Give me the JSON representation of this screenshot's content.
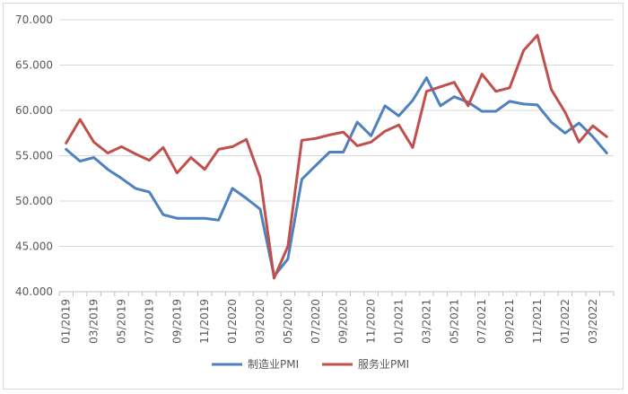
{
  "chart_data": {
    "type": "line",
    "title": "",
    "xlabel": "",
    "ylabel": "",
    "ylim": [
      40,
      70
    ],
    "y_ticks": [
      "40.000",
      "45.000",
      "50.000",
      "55.000",
      "60.000",
      "65.000",
      "70.000"
    ],
    "grid": "horizontal",
    "legend_position": "bottom",
    "categories": [
      "01/2019",
      "02/2019",
      "03/2019",
      "04/2019",
      "05/2019",
      "06/2019",
      "07/2019",
      "08/2019",
      "09/2019",
      "10/2019",
      "11/2019",
      "12/2019",
      "01/2020",
      "02/2020",
      "03/2020",
      "04/2020",
      "05/2020",
      "06/2020",
      "07/2020",
      "08/2020",
      "09/2020",
      "10/2020",
      "11/2020",
      "12/2020",
      "01/2021",
      "02/2021",
      "03/2021",
      "04/2021",
      "05/2021",
      "06/2021",
      "07/2021",
      "08/2021",
      "09/2021",
      "10/2021",
      "11/2021",
      "12/2021",
      "01/2022",
      "02/2022",
      "03/2022",
      "04/2022"
    ],
    "x_tick_labels": [
      "01/2019",
      "03/2019",
      "05/2019",
      "07/2019",
      "09/2019",
      "11/2019",
      "01/2020",
      "03/2020",
      "05/2020",
      "07/2020",
      "09/2020",
      "11/2020",
      "01/2021",
      "03/2021",
      "05/2021",
      "07/2021",
      "09/2021",
      "11/2021",
      "01/2022",
      "03/2022"
    ],
    "series": [
      {
        "name": "制造业PMI",
        "color": "#4e81bd",
        "values": [
          55.7,
          54.4,
          54.8,
          53.5,
          52.5,
          51.4,
          51.0,
          48.5,
          48.1,
          48.1,
          48.1,
          47.9,
          51.4,
          50.3,
          49.1,
          41.7,
          43.6,
          52.4,
          53.9,
          55.4,
          55.4,
          58.7,
          57.2,
          60.5,
          59.4,
          61.1,
          63.6,
          60.5,
          61.5,
          60.9,
          59.9,
          59.9,
          61.0,
          60.7,
          60.6,
          58.7,
          57.5,
          58.6,
          57.1,
          55.3
        ]
      },
      {
        "name": "服务业PMI",
        "color": "#c0504d",
        "values": [
          56.4,
          59.0,
          56.5,
          55.3,
          56.0,
          55.2,
          54.5,
          55.9,
          53.1,
          54.8,
          53.5,
          55.7,
          56.0,
          56.8,
          52.6,
          41.5,
          45.0,
          56.7,
          56.9,
          57.3,
          57.6,
          56.1,
          56.5,
          57.7,
          58.4,
          55.9,
          62.1,
          62.6,
          63.1,
          60.5,
          64.0,
          62.1,
          62.5,
          66.6,
          68.3,
          62.3,
          59.8,
          56.5,
          58.3,
          57.1
        ]
      }
    ]
  }
}
